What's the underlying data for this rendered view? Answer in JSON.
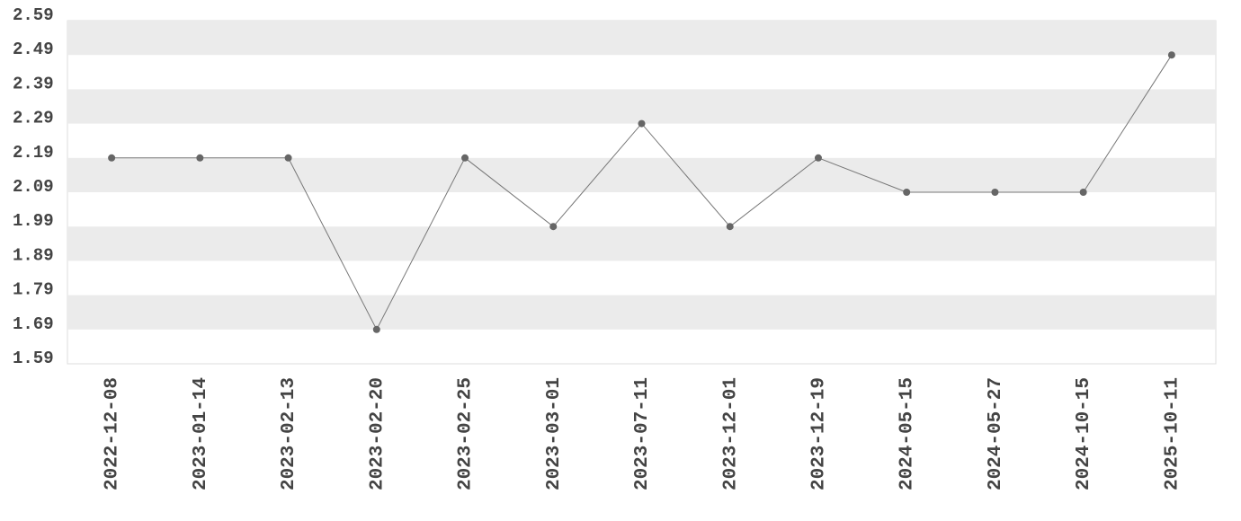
{
  "chart_data": {
    "type": "line",
    "categories": [
      "2022-12-08",
      "2023-01-14",
      "2023-02-13",
      "2023-02-20",
      "2023-02-25",
      "2023-03-01",
      "2023-07-11",
      "2023-12-01",
      "2023-12-19",
      "2024-05-15",
      "2024-05-27",
      "2024-10-15",
      "2025-10-11"
    ],
    "values": [
      2.19,
      2.19,
      2.19,
      1.69,
      2.19,
      1.99,
      2.29,
      1.99,
      2.19,
      2.09,
      2.09,
      2.09,
      2.49
    ],
    "color": "#777777",
    "ylim": [
      1.59,
      2.59
    ],
    "yticks": [
      1.59,
      1.69,
      1.79,
      1.89,
      1.99,
      2.09,
      2.19,
      2.29,
      2.39,
      2.49,
      2.59
    ],
    "banded_grid": true
  }
}
